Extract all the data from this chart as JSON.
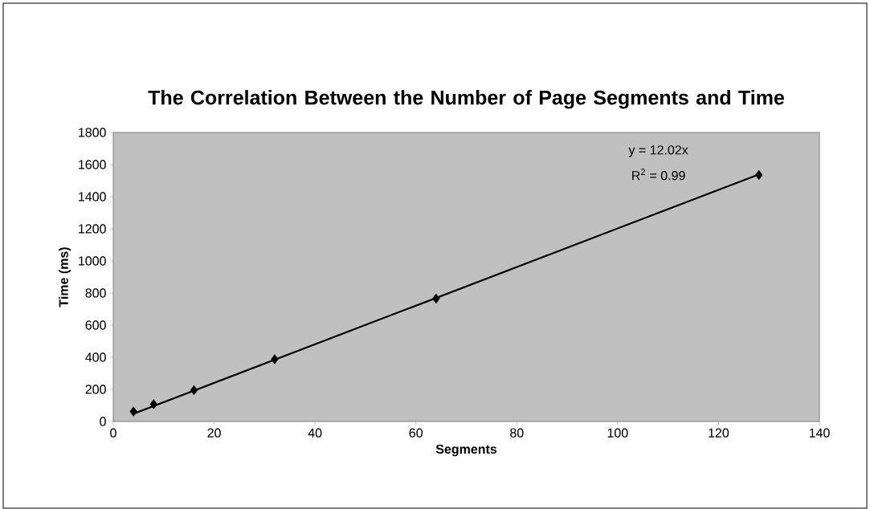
{
  "chart_data": {
    "type": "scatter",
    "title": "The Correlation Between the Number of Page Segments and Time",
    "xlabel": "Segments",
    "ylabel": "Time (ms)",
    "series": [
      {
        "color": "#000000",
        "x": [
          4,
          8,
          16,
          32,
          64,
          128
        ],
        "values": [
          62,
          108,
          195,
          388,
          765,
          1535
        ],
        "marker": "diamond"
      },
      {
        "type": "line",
        "color": "#000000",
        "x": [
          4,
          128
        ],
        "values": [
          48,
          1539
        ],
        "marker": "none",
        "line_style": "solid"
      }
    ],
    "annotations": [
      "y = 12.02x",
      "R$^{2}$ = 0.99"
    ],
    "xlim": [
      0,
      140
    ],
    "xticks": [
      0,
      20,
      40,
      60,
      80,
      100,
      120,
      140
    ],
    "ylim": [
      0,
      1800
    ],
    "yticks": [
      0,
      200,
      400,
      600,
      800,
      1000,
      1200,
      1400,
      1600,
      1800
    ],
    "grid": false
  }
}
